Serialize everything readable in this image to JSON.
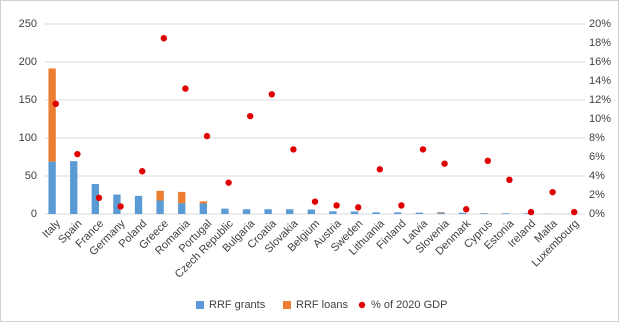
{
  "chart_data": {
    "type": "bar",
    "stacked": true,
    "categories": [
      "Italy",
      "Spain",
      "France",
      "Germany",
      "Poland",
      "Greece",
      "Romania",
      "Portugal",
      "Czech Republic",
      "Bulgaria",
      "Croatia",
      "Slovakia",
      "Belgium",
      "Austria",
      "Sweden",
      "Lithuania",
      "Finland",
      "Latvia",
      "Slovenia",
      "Denmark",
      "Cyprus",
      "Estonia",
      "Ireland",
      "Malta",
      "Luxembourg"
    ],
    "series": [
      {
        "name": "RRF grants",
        "color": "#5b9bd5",
        "values": [
          68.9,
          69.5,
          39.4,
          25.6,
          23.9,
          17.8,
          14.2,
          13.9,
          7.1,
          6.3,
          6.3,
          6.3,
          5.9,
          3.5,
          3.3,
          2.2,
          2.1,
          1.8,
          1.8,
          1.6,
          1.0,
          1.0,
          0.9,
          0.3,
          0.1
        ]
      },
      {
        "name": "RRF loans",
        "color": "#ed7d31",
        "values": [
          122.6,
          0,
          0,
          0,
          0,
          12.7,
          14.9,
          2.7,
          0,
          0,
          0,
          0,
          0,
          0,
          0,
          0,
          0,
          0,
          0.7,
          0,
          0.2,
          0,
          0,
          0,
          0
        ]
      },
      {
        "name": "% of 2020 GDP",
        "color": "#e00000",
        "type": "scatter",
        "axis": "y2",
        "values": [
          11.6,
          6.3,
          1.7,
          0.8,
          4.5,
          18.5,
          13.2,
          8.2,
          3.3,
          10.3,
          12.6,
          6.8,
          1.3,
          0.9,
          0.7,
          4.7,
          0.9,
          6.8,
          5.3,
          0.5,
          5.6,
          3.6,
          0.2,
          2.3,
          0.2
        ]
      }
    ],
    "ylim": [
      0,
      250
    ],
    "yticks": [
      0,
      50,
      100,
      150,
      200,
      250
    ],
    "y2lim": [
      0,
      20
    ],
    "y2ticks": [
      {
        "value": 0,
        "label": "0%"
      },
      {
        "value": 2,
        "label": "2%"
      },
      {
        "value": 4,
        "label": "4%"
      },
      {
        "value": 6,
        "label": "6%"
      },
      {
        "value": 8,
        "label": "8%"
      },
      {
        "value": 10,
        "label": "10%"
      },
      {
        "value": 12,
        "label": "12%"
      },
      {
        "value": 14,
        "label": "14%"
      },
      {
        "value": 16,
        "label": "16%"
      },
      {
        "value": 18,
        "label": "18%"
      },
      {
        "value": 20,
        "label": "20%"
      }
    ],
    "grid": true,
    "legend": "bottom"
  }
}
